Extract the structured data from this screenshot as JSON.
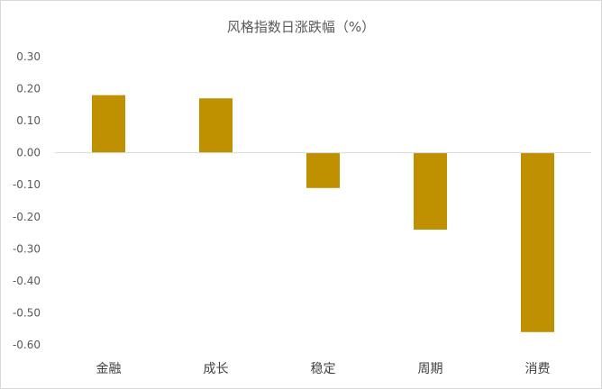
{
  "chart_data": {
    "type": "bar",
    "title": "风格指数日涨跌幅（%）",
    "categories": [
      "金融",
      "成长",
      "稳定",
      "周期",
      "消费"
    ],
    "values": [
      0.18,
      0.17,
      -0.11,
      -0.24,
      -0.56
    ],
    "ylim": [
      -0.6,
      0.3
    ],
    "yticks": [
      "0.30",
      "0.20",
      "0.10",
      "0.00",
      "-0.10",
      "-0.20",
      "-0.30",
      "-0.40",
      "-0.50",
      "-0.60"
    ],
    "grid": false,
    "legend": "none",
    "bar_color": "#bf9000",
    "axis_color": "#d9d9d9"
  }
}
